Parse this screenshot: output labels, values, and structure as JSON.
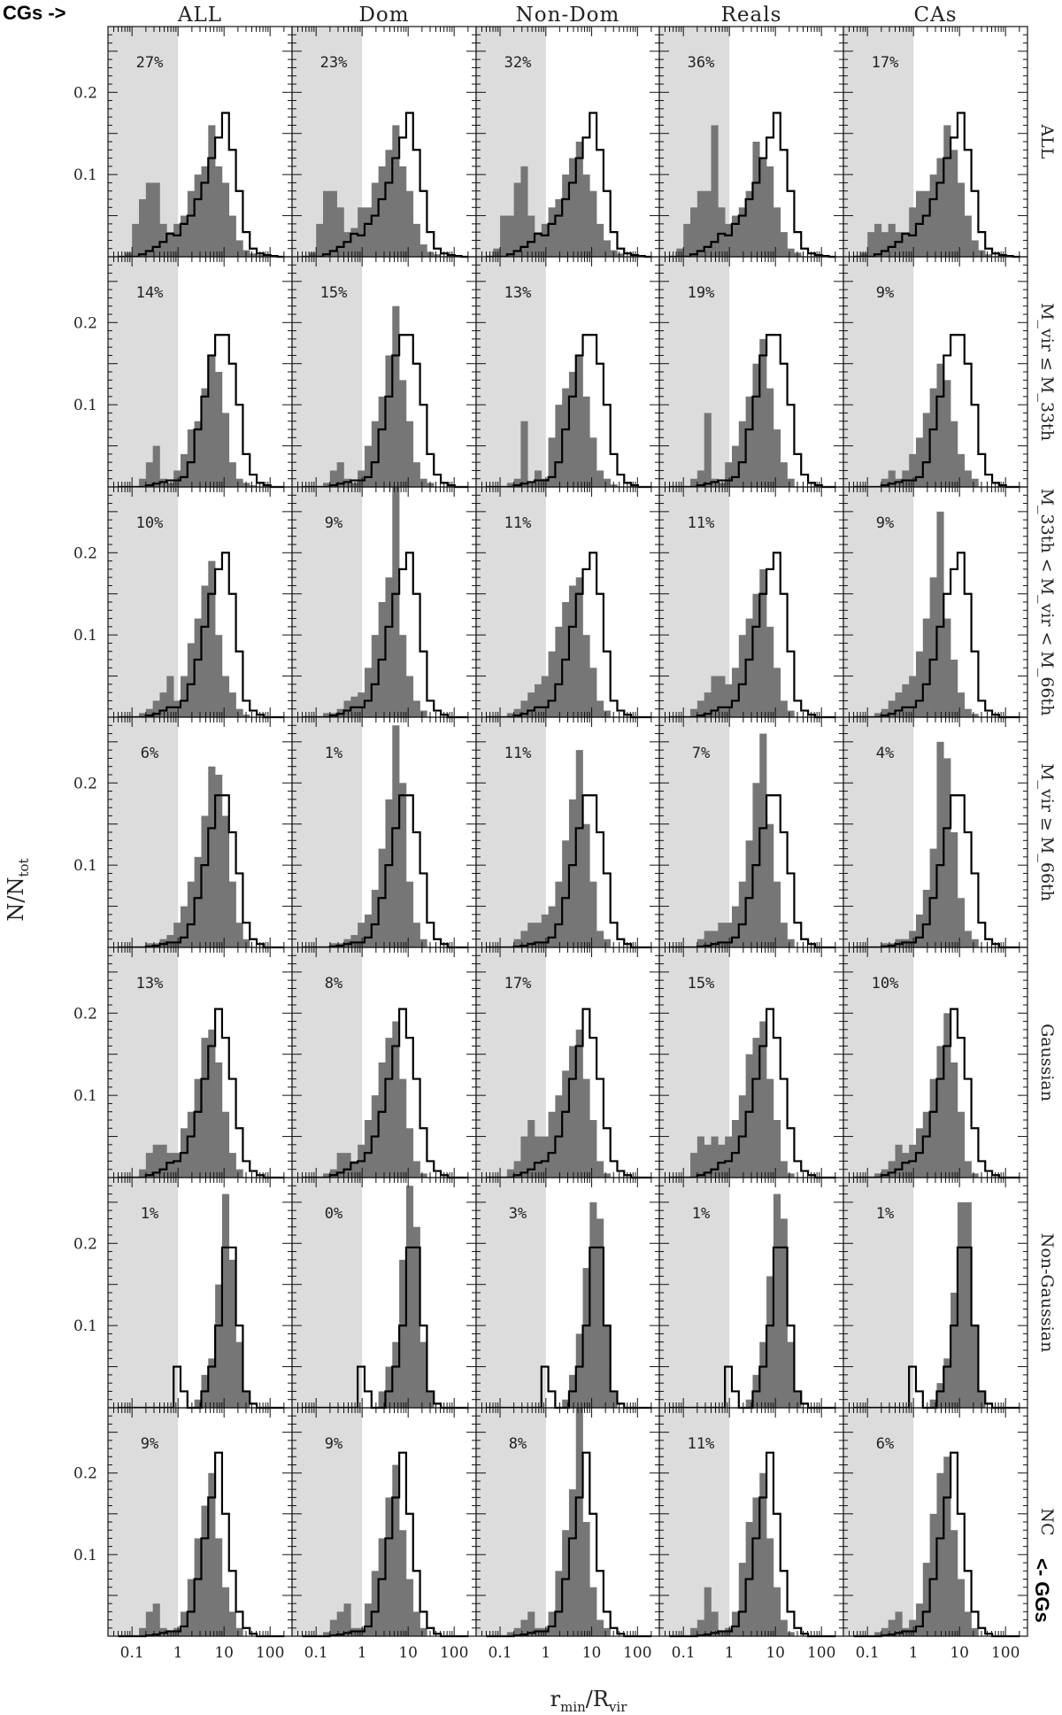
{
  "figure": {
    "top_left_label": "CGs ->",
    "bottom_right_label": "<- GGs",
    "ylabel": "N/N_tot",
    "xlabel": "r_min/R_vir",
    "columns": [
      "ALL",
      "Dom",
      "Non-Dom",
      "Reals",
      "CAs"
    ],
    "rows": [
      "ALL",
      "M_vir ≤ M_33th",
      "M_33th < M_vir < M_66th",
      "M_vir ≥ M_66th",
      "Gaussian",
      "Non-Gaussian",
      "NC"
    ],
    "ytick_labels": [
      "0.1",
      "0.2"
    ],
    "xtick_labels": [
      "0.1",
      "1",
      "10",
      "100"
    ],
    "colors": {
      "shade": "#dcdcdc",
      "filled": "#767676",
      "outline": "#000000"
    }
  },
  "chart_data": {
    "type": "bar",
    "title": "",
    "xlabel": "r_min/R_vir",
    "ylabel": "N/N_tot",
    "xscale": "log",
    "xlim": [
      0.03,
      300
    ],
    "ylim": [
      0,
      0.28
    ],
    "bin_edges": [
      0.05,
      0.0707,
      0.1,
      0.1414,
      0.2,
      0.2828,
      0.4,
      0.5657,
      0.8,
      1.131,
      1.6,
      2.263,
      3.2,
      4.525,
      6.4,
      9.051,
      12.8,
      18.1,
      25.6,
      36.2,
      51.2,
      72.4,
      102.4,
      144.8,
      204.8
    ],
    "shaded_region": [
      0,
      1
    ],
    "series_note": "filled = grey histogram of CGs; outline = black step histogram of GGs",
    "percent_labels": [
      [
        "27%",
        "23%",
        "32%",
        "36%",
        "17%"
      ],
      [
        "14%",
        "15%",
        "13%",
        "19%",
        "9%"
      ],
      [
        "10%",
        "9%",
        "11%",
        "11%",
        "9%"
      ],
      [
        "6%",
        "1%",
        "11%",
        "7%",
        "4%"
      ],
      [
        "13%",
        "8%",
        "17%",
        "15%",
        "10%"
      ],
      [
        "1%",
        "0%",
        "3%",
        "1%",
        "1%"
      ],
      [
        "9%",
        "9%",
        "8%",
        "11%",
        "6%"
      ]
    ],
    "outline": [
      [
        0,
        0,
        0,
        0.003,
        0.007,
        0.012,
        0.018,
        0.028,
        0.026,
        0.04,
        0.05,
        0.07,
        0.09,
        0.12,
        0.145,
        0.175,
        0.13,
        0.08,
        0.03,
        0.01,
        0.004,
        0.002,
        0.001,
        0
      ],
      [
        0,
        0,
        0,
        0,
        0.002,
        0.004,
        0.006,
        0.008,
        0.008,
        0.012,
        0.03,
        0.07,
        0.11,
        0.16,
        0.185,
        0.185,
        0.15,
        0.1,
        0.04,
        0.015,
        0.005,
        0.002,
        0,
        0
      ],
      [
        0,
        0,
        0,
        0,
        0.002,
        0.004,
        0.008,
        0.012,
        0.012,
        0.02,
        0.04,
        0.07,
        0.11,
        0.15,
        0.18,
        0.2,
        0.15,
        0.08,
        0.02,
        0.008,
        0.003,
        0,
        0,
        0
      ],
      [
        0,
        0,
        0,
        0,
        0.001,
        0.002,
        0.004,
        0.006,
        0.006,
        0.012,
        0.028,
        0.06,
        0.1,
        0.145,
        0.185,
        0.185,
        0.14,
        0.09,
        0.03,
        0.01,
        0.004,
        0,
        0,
        0
      ],
      [
        0,
        0,
        0,
        0,
        0.003,
        0.006,
        0.01,
        0.018,
        0.02,
        0.03,
        0.05,
        0.08,
        0.12,
        0.16,
        0.205,
        0.17,
        0.12,
        0.06,
        0.02,
        0.008,
        0.003,
        0,
        0,
        0
      ],
      [
        0,
        0,
        0,
        0,
        0,
        0,
        0,
        0,
        0.05,
        0.02,
        0,
        0,
        0.02,
        0.05,
        0.1,
        0.195,
        0.195,
        0.1,
        0.02,
        0.005,
        0,
        0,
        0,
        0
      ],
      [
        0,
        0,
        0,
        0,
        0.001,
        0.002,
        0.004,
        0.006,
        0.006,
        0.012,
        0.03,
        0.07,
        0.12,
        0.17,
        0.225,
        0.15,
        0.08,
        0.03,
        0.01,
        0.003,
        0,
        0,
        0,
        0
      ]
    ],
    "filled": [
      [
        [
          0,
          0.005,
          0.04,
          0.07,
          0.09,
          0.09,
          0.04,
          0.03,
          0.04,
          0.05,
          0.08,
          0.1,
          0.11,
          0.16,
          0.11,
          0.09,
          0.05,
          0.02,
          0.008,
          0.004,
          0.002,
          0,
          0,
          0
        ],
        [
          0,
          0.005,
          0.04,
          0.08,
          0.08,
          0.06,
          0.03,
          0.035,
          0.06,
          0.06,
          0.09,
          0.11,
          0.13,
          0.16,
          0.11,
          0.08,
          0.04,
          0.015,
          0.006,
          0.003,
          0,
          0,
          0,
          0
        ],
        [
          0,
          0.01,
          0.05,
          0.05,
          0.09,
          0.11,
          0.05,
          0.03,
          0.04,
          0.06,
          0.07,
          0.1,
          0.12,
          0.14,
          0.1,
          0.08,
          0.04,
          0.02,
          0.008,
          0.004,
          0,
          0,
          0,
          0
        ],
        [
          0,
          0.01,
          0.04,
          0.06,
          0.08,
          0.08,
          0.16,
          0.06,
          0.04,
          0.05,
          0.06,
          0.08,
          0.14,
          0.12,
          0.11,
          0.06,
          0.03,
          0.01,
          0.005,
          0,
          0,
          0,
          0,
          0
        ],
        [
          0,
          0.005,
          0.03,
          0.04,
          0.03,
          0.04,
          0.03,
          0.03,
          0.06,
          0.08,
          0.08,
          0.1,
          0.12,
          0.16,
          0.13,
          0.09,
          0.05,
          0.02,
          0.008,
          0.003,
          0,
          0,
          0,
          0
        ]
      ],
      [
        [
          0,
          0,
          0,
          0.01,
          0.03,
          0.05,
          0.01,
          0.005,
          0.02,
          0.04,
          0.07,
          0.08,
          0.12,
          0.16,
          0.14,
          0.09,
          0.03,
          0.01,
          0.005,
          0.002,
          0,
          0,
          0,
          0
        ],
        [
          0,
          0,
          0,
          0.005,
          0.02,
          0.03,
          0.01,
          0.005,
          0.02,
          0.05,
          0.08,
          0.11,
          0.16,
          0.22,
          0.13,
          0.08,
          0.03,
          0.01,
          0.005,
          0,
          0,
          0,
          0,
          0
        ],
        [
          0,
          0,
          0,
          0.005,
          0.01,
          0.08,
          0.005,
          0.02,
          0.01,
          0.06,
          0.1,
          0.12,
          0.14,
          0.16,
          0.11,
          0.06,
          0.02,
          0.01,
          0.003,
          0,
          0,
          0,
          0,
          0
        ],
        [
          0,
          0,
          0,
          0.01,
          0.02,
          0.09,
          0.01,
          0.005,
          0.03,
          0.05,
          0.08,
          0.11,
          0.15,
          0.18,
          0.12,
          0.07,
          0.03,
          0.01,
          0,
          0,
          0,
          0,
          0,
          0
        ],
        [
          0,
          0,
          0,
          0,
          0.01,
          0.02,
          0.01,
          0.02,
          0.04,
          0.06,
          0.09,
          0.12,
          0.15,
          0.13,
          0.08,
          0.04,
          0.02,
          0.01,
          0,
          0,
          0,
          0,
          0,
          0
        ]
      ],
      [
        [
          0,
          0,
          0,
          0.005,
          0.01,
          0.02,
          0.03,
          0.05,
          0.02,
          0.05,
          0.09,
          0.12,
          0.16,
          0.19,
          0.1,
          0.05,
          0.03,
          0.01,
          0.003,
          0,
          0,
          0,
          0,
          0
        ],
        [
          0,
          0,
          0,
          0.005,
          0.005,
          0.01,
          0.02,
          0.025,
          0.03,
          0.06,
          0.1,
          0.14,
          0.17,
          0.28,
          0.1,
          0.05,
          0.02,
          0.008,
          0,
          0,
          0,
          0,
          0,
          0
        ],
        [
          0,
          0,
          0,
          0.005,
          0.01,
          0.02,
          0.03,
          0.04,
          0.05,
          0.08,
          0.11,
          0.14,
          0.16,
          0.17,
          0.1,
          0.06,
          0.02,
          0.008,
          0,
          0,
          0,
          0,
          0,
          0
        ],
        [
          0,
          0,
          0,
          0.01,
          0.02,
          0.03,
          0.05,
          0.05,
          0.04,
          0.06,
          0.1,
          0.12,
          0.15,
          0.18,
          0.11,
          0.06,
          0.02,
          0.008,
          0,
          0,
          0,
          0,
          0,
          0
        ],
        [
          0,
          0,
          0,
          0.005,
          0.01,
          0.02,
          0.03,
          0.04,
          0.05,
          0.08,
          0.12,
          0.17,
          0.25,
          0.12,
          0.07,
          0.03,
          0.01,
          0.004,
          0,
          0,
          0,
          0,
          0,
          0
        ]
      ],
      [
        [
          0,
          0,
          0,
          0,
          0.005,
          0.005,
          0.01,
          0.015,
          0.03,
          0.05,
          0.08,
          0.11,
          0.16,
          0.22,
          0.21,
          0.16,
          0.08,
          0.03,
          0.01,
          0,
          0,
          0,
          0,
          0
        ],
        [
          0,
          0,
          0,
          0,
          0.005,
          0.005,
          0.01,
          0.015,
          0.03,
          0.04,
          0.07,
          0.12,
          0.18,
          0.27,
          0.2,
          0.08,
          0.03,
          0.01,
          0,
          0,
          0,
          0,
          0,
          0
        ],
        [
          0,
          0,
          0,
          0,
          0.01,
          0.02,
          0.03,
          0.03,
          0.04,
          0.05,
          0.08,
          0.13,
          0.18,
          0.24,
          0.15,
          0.08,
          0.02,
          0.01,
          0,
          0,
          0,
          0,
          0,
          0
        ],
        [
          0,
          0,
          0,
          0,
          0.01,
          0.02,
          0.02,
          0.03,
          0.03,
          0.05,
          0.08,
          0.13,
          0.2,
          0.26,
          0.15,
          0.08,
          0.03,
          0.01,
          0,
          0,
          0,
          0,
          0,
          0
        ],
        [
          0,
          0,
          0,
          0,
          0.005,
          0.005,
          0.01,
          0.01,
          0.02,
          0.04,
          0.07,
          0.12,
          0.25,
          0.23,
          0.14,
          0.06,
          0.02,
          0.01,
          0,
          0,
          0,
          0,
          0,
          0
        ]
      ],
      [
        [
          0,
          0,
          0,
          0.01,
          0.03,
          0.04,
          0.04,
          0.03,
          0.03,
          0.06,
          0.08,
          0.12,
          0.17,
          0.18,
          0.14,
          0.08,
          0.03,
          0.01,
          0,
          0,
          0,
          0,
          0,
          0
        ],
        [
          0,
          0,
          0,
          0.005,
          0.01,
          0.03,
          0.03,
          0.02,
          0.04,
          0.07,
          0.1,
          0.14,
          0.17,
          0.19,
          0.12,
          0.06,
          0.02,
          0.005,
          0,
          0,
          0,
          0,
          0,
          0
        ],
        [
          0,
          0,
          0,
          0.01,
          0.02,
          0.05,
          0.07,
          0.05,
          0.05,
          0.08,
          0.1,
          0.13,
          0.16,
          0.18,
          0.12,
          0.07,
          0.02,
          0.005,
          0,
          0,
          0,
          0,
          0,
          0
        ],
        [
          0,
          0,
          0,
          0.03,
          0.05,
          0.04,
          0.05,
          0.04,
          0.05,
          0.07,
          0.1,
          0.15,
          0.17,
          0.19,
          0.12,
          0.07,
          0.02,
          0.005,
          0,
          0,
          0,
          0,
          0,
          0
        ],
        [
          0,
          0,
          0,
          0.005,
          0.01,
          0.02,
          0.04,
          0.03,
          0.04,
          0.06,
          0.08,
          0.12,
          0.16,
          0.2,
          0.14,
          0.08,
          0.02,
          0.005,
          0,
          0,
          0,
          0,
          0,
          0
        ]
      ],
      [
        [
          0,
          0,
          0,
          0,
          0,
          0,
          0,
          0,
          0,
          0,
          0,
          0.01,
          0.04,
          0.06,
          0.15,
          0.26,
          0.18,
          0.08,
          0.02,
          0,
          0,
          0,
          0,
          0
        ],
        [
          0,
          0,
          0,
          0,
          0,
          0,
          0,
          0,
          0,
          0,
          0,
          0.02,
          0.05,
          0.08,
          0.18,
          0.27,
          0.22,
          0.08,
          0.02,
          0,
          0,
          0,
          0,
          0
        ],
        [
          0,
          0,
          0,
          0,
          0,
          0,
          0,
          0,
          0,
          0,
          0,
          0.01,
          0.04,
          0.09,
          0.17,
          0.25,
          0.23,
          0.1,
          0.02,
          0,
          0,
          0,
          0,
          0
        ],
        [
          0,
          0,
          0,
          0,
          0,
          0,
          0,
          0,
          0,
          0,
          0,
          0.01,
          0.04,
          0.08,
          0.16,
          0.26,
          0.23,
          0.08,
          0.02,
          0,
          0,
          0,
          0,
          0
        ],
        [
          0,
          0,
          0,
          0,
          0,
          0,
          0,
          0,
          0,
          0,
          0,
          0.01,
          0.03,
          0.06,
          0.14,
          0.25,
          0.25,
          0.1,
          0.02,
          0,
          0,
          0,
          0,
          0
        ]
      ],
      [
        [
          0,
          0,
          0,
          0.01,
          0.03,
          0.04,
          0.01,
          0.005,
          0.01,
          0.03,
          0.07,
          0.12,
          0.16,
          0.2,
          0.12,
          0.06,
          0.03,
          0.01,
          0,
          0,
          0,
          0,
          0,
          0
        ],
        [
          0,
          0,
          0,
          0.005,
          0.02,
          0.03,
          0.04,
          0.01,
          0.01,
          0.04,
          0.08,
          0.12,
          0.17,
          0.21,
          0.13,
          0.07,
          0.03,
          0.01,
          0,
          0,
          0,
          0,
          0,
          0
        ],
        [
          0,
          0,
          0,
          0.005,
          0.01,
          0.02,
          0.03,
          0.01,
          0.01,
          0.03,
          0.08,
          0.13,
          0.18,
          0.28,
          0.14,
          0.06,
          0.02,
          0.01,
          0,
          0,
          0,
          0,
          0,
          0
        ],
        [
          0,
          0,
          0,
          0.01,
          0.02,
          0.06,
          0.03,
          0.005,
          0.01,
          0.03,
          0.09,
          0.14,
          0.17,
          0.2,
          0.12,
          0.06,
          0.02,
          0.005,
          0,
          0,
          0,
          0,
          0,
          0
        ],
        [
          0,
          0,
          0,
          0.005,
          0.01,
          0.02,
          0.03,
          0.01,
          0.02,
          0.04,
          0.09,
          0.15,
          0.2,
          0.22,
          0.13,
          0.07,
          0.03,
          0.01,
          0,
          0,
          0,
          0,
          0,
          0
        ]
      ]
    ]
  }
}
